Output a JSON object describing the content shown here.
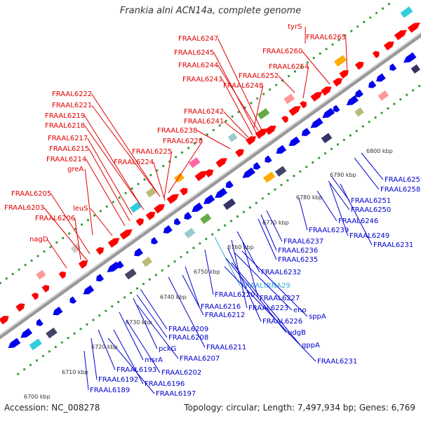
{
  "title": "Frankia alni ACN14a, complete genome",
  "footer": {
    "accession": "Accession: NC_008278",
    "topology": "Topology: circular; Length: 7,497,934 bp; Genes: 6,769"
  },
  "colors": {
    "top_strand_label": "#e00000",
    "bottom_strand_label": "#0000cc",
    "rna_label": "#33aadd",
    "forward_feature": "#ff0000",
    "reverse_feature": "#0000ee",
    "backbone": "#999999",
    "tick_dot": "#339933"
  },
  "scale_ticks": [
    "6700 kbp",
    "6710 kbp",
    "6720 kbp",
    "6730 kbp",
    "6740 kbp",
    "6750 kbp",
    "6760 kbp",
    "6770 kbp",
    "6780 kbp",
    "6790 kbp",
    "6800 kbp"
  ],
  "top_labels": [
    "tyrS",
    "FRAAL6265",
    "FRAAL6247",
    "FRAAL6245",
    "FRAAL6260",
    "FRAAL6244",
    "FRAAL6254",
    "FRAAL6243",
    "FRAAL6252",
    "FRAAL6248",
    "FRAAL6222",
    "FRAAL6221",
    "FRAAL6219",
    "FRAAL6218",
    "FRAAL6242",
    "FRAAL6241",
    "FRAAL6238",
    "FRAAL6217",
    "FRAAL6228",
    "FRAAL6215",
    "FRAAL6225",
    "FRAAL6214",
    "FRAAL6224",
    "greA",
    "FRAAL6205",
    "FRAAL6203",
    "leuS",
    "FRAAL6206",
    "nagD"
  ],
  "bottom_labels": [
    "FRAAL6259",
    "FRAAL6258",
    "FRAAL6251",
    "FRAAL6250",
    "FRAAL6246",
    "FRAAL6249",
    "FRAAL6239",
    "FRAAL6231",
    "FRAAL6237",
    "FRAAL6236",
    "FRAAL6235",
    "FRAAL6232",
    "FRAALtRNA29",
    "FRAAL6227",
    "FRAAL6220",
    "FRAAL6223",
    "eno",
    "sppA",
    "FRAAL6216",
    "FRAAL6212",
    "FRAAL6226",
    "udgB",
    "FRAAL6209",
    "FRAAL6208",
    "FRAAL6211",
    "gppA",
    "pckG",
    "FRAAL6207",
    "msrA",
    "FRAAL6231",
    "FRAAL6193",
    "FRAAL6202",
    "FRAAL6192",
    "FRAAL6196",
    "FRAAL6189",
    "FRAAL6197"
  ]
}
